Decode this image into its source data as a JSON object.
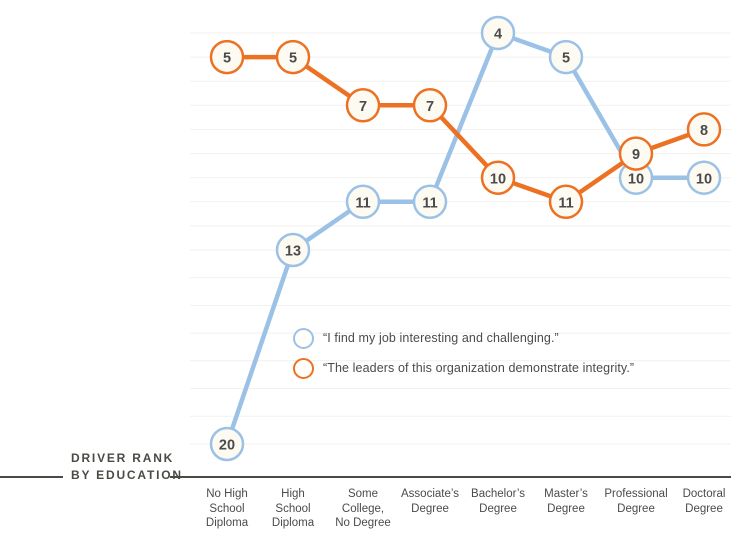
{
  "chart_data": {
    "type": "line",
    "title": "Driver Rank by Education",
    "categories": [
      "No High\nSchool\nDiploma",
      "High\nSchool\nDiploma",
      "Some\nCollege,\nNo Degree",
      "Associate’s\nDegree",
      "Bachelor’s\nDegree",
      "Master’s\nDegree",
      "Professional\nDegree",
      "Doctoral\nDegree"
    ],
    "series": [
      {
        "name": "“I find my job interesting and challenging.”",
        "color": "#9bc2e6",
        "values": [
          20,
          13,
          11,
          11,
          4,
          5,
          10,
          10
        ]
      },
      {
        "name": "“The leaders of this organization demonstrate integrity.”",
        "color": "#ec7123",
        "values": [
          5,
          5,
          7,
          7,
          10,
          11,
          9,
          8
        ]
      }
    ],
    "xlabel": "",
    "ylabel": "Driver Rank",
    "y_axis_inverted": true,
    "y_range_shown": [
      4,
      20
    ],
    "grid": "faint horizontal lines",
    "legend_position": "inside plot, center-left",
    "data_labels": "rank value inside each point circle"
  },
  "footer": {
    "label_line1": "DRIVER RANK",
    "label_line2": "BY EDUCATION"
  },
  "colors": {
    "series_blue": "#9bc2e6",
    "series_orange": "#ec7123",
    "node_fill": "#fdfaf2",
    "value_text": "#4b4b4b",
    "axis_line": "#4b4a44",
    "label_text": "#4b4b4b",
    "gridline": "#f3f1ed",
    "background": "#ffffff"
  }
}
